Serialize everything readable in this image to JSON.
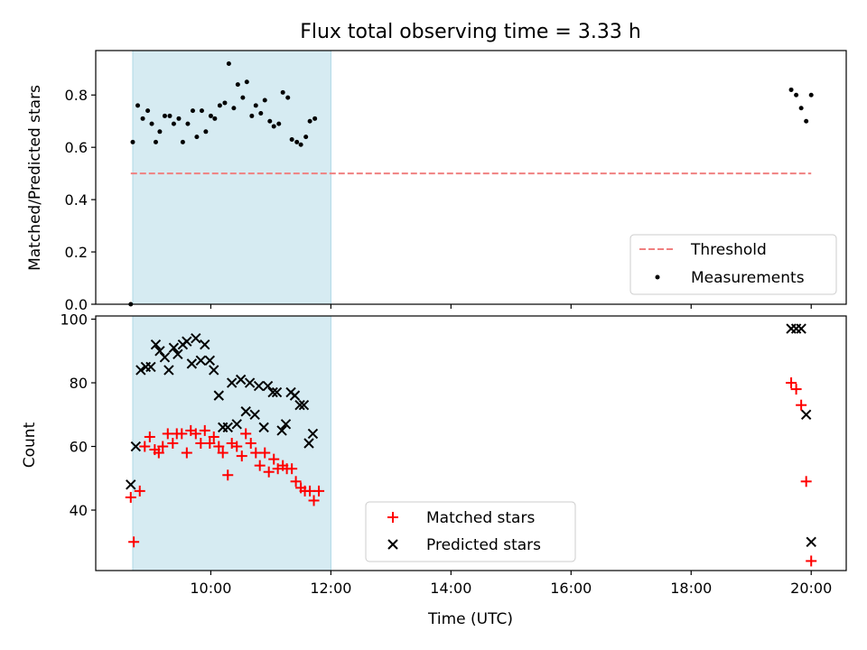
{
  "chart_data": [
    {
      "type": "scatter",
      "title": "Flux total observing time = 3.33 h",
      "xlabel": "",
      "ylabel": "Matched/Predicted stars",
      "xlim": [
        "08:05",
        "20:35"
      ],
      "ylim": [
        0,
        0.97
      ],
      "yticks": [
        "0.0",
        "0.2",
        "0.4",
        "0.6",
        "0.8"
      ],
      "shaded_span": [
        "08:42",
        "12:00"
      ],
      "legend": "lower-right",
      "threshold": {
        "name": "Threshold",
        "value": 0.5,
        "x_range": [
          "08:40",
          "20:00"
        ],
        "color": "#f08080"
      },
      "series": [
        {
          "name": "Measurements",
          "color": "#000000",
          "points": [
            [
              "08:40",
              0.0
            ],
            [
              "08:42",
              0.62
            ],
            [
              "08:47",
              0.76
            ],
            [
              "08:52",
              0.71
            ],
            [
              "08:57",
              0.74
            ],
            [
              "09:01",
              0.69
            ],
            [
              "09:05",
              0.62
            ],
            [
              "09:09",
              0.66
            ],
            [
              "09:14",
              0.72
            ],
            [
              "09:19",
              0.72
            ],
            [
              "09:23",
              0.69
            ],
            [
              "09:28",
              0.71
            ],
            [
              "09:32",
              0.62
            ],
            [
              "09:37",
              0.69
            ],
            [
              "09:42",
              0.74
            ],
            [
              "09:46",
              0.64
            ],
            [
              "09:51",
              0.74
            ],
            [
              "09:55",
              0.66
            ],
            [
              "10:00",
              0.72
            ],
            [
              "10:04",
              0.71
            ],
            [
              "10:09",
              0.76
            ],
            [
              "10:14",
              0.77
            ],
            [
              "10:18",
              0.92
            ],
            [
              "10:23",
              0.75
            ],
            [
              "10:27",
              0.84
            ],
            [
              "10:32",
              0.79
            ],
            [
              "10:36",
              0.85
            ],
            [
              "10:41",
              0.72
            ],
            [
              "10:45",
              0.76
            ],
            [
              "10:50",
              0.73
            ],
            [
              "10:54",
              0.78
            ],
            [
              "10:59",
              0.7
            ],
            [
              "11:03",
              0.68
            ],
            [
              "11:08",
              0.69
            ],
            [
              "11:12",
              0.81
            ],
            [
              "11:17",
              0.79
            ],
            [
              "11:21",
              0.63
            ],
            [
              "11:26",
              0.62
            ],
            [
              "11:30",
              0.61
            ],
            [
              "11:35",
              0.64
            ],
            [
              "11:39",
              0.7
            ],
            [
              "11:44",
              0.71
            ],
            [
              "19:40",
              0.82
            ],
            [
              "19:45",
              0.8
            ],
            [
              "19:50",
              0.75
            ],
            [
              "19:55",
              0.7
            ],
            [
              "20:00",
              0.8
            ]
          ]
        }
      ]
    },
    {
      "type": "scatter",
      "title": "",
      "xlabel": "Time (UTC)",
      "ylabel": "Count",
      "xlim": [
        "08:05",
        "20:35"
      ],
      "ylim": [
        21,
        101
      ],
      "yticks": [
        "40",
        "60",
        "80",
        "100"
      ],
      "xticks": [
        "10:00",
        "12:00",
        "14:00",
        "16:00",
        "18:00",
        "20:00"
      ],
      "shaded_span": [
        "08:42",
        "12:00"
      ],
      "legend": "lower-center",
      "series": [
        {
          "name": "Matched stars",
          "marker": "plus",
          "color": "#ff0000",
          "points": [
            [
              "08:40",
              44
            ],
            [
              "08:43",
              30
            ],
            [
              "08:49",
              46
            ],
            [
              "08:54",
              60
            ],
            [
              "08:59",
              63
            ],
            [
              "09:04",
              59
            ],
            [
              "09:08",
              58
            ],
            [
              "09:12",
              60
            ],
            [
              "09:17",
              64
            ],
            [
              "09:22",
              61
            ],
            [
              "09:26",
              64
            ],
            [
              "09:31",
              64
            ],
            [
              "09:36",
              58
            ],
            [
              "09:40",
              65
            ],
            [
              "09:45",
              64
            ],
            [
              "09:50",
              61
            ],
            [
              "09:54",
              65
            ],
            [
              "09:59",
              61
            ],
            [
              "10:03",
              63
            ],
            [
              "10:08",
              60
            ],
            [
              "10:12",
              58
            ],
            [
              "10:17",
              51
            ],
            [
              "10:21",
              61
            ],
            [
              "10:26",
              60
            ],
            [
              "10:31",
              57
            ],
            [
              "10:35",
              64
            ],
            [
              "10:40",
              61
            ],
            [
              "10:45",
              58
            ],
            [
              "10:49",
              54
            ],
            [
              "10:54",
              58
            ],
            [
              "10:58",
              52
            ],
            [
              "11:03",
              56
            ],
            [
              "11:07",
              53
            ],
            [
              "11:12",
              54
            ],
            [
              "11:16",
              53
            ],
            [
              "11:21",
              53
            ],
            [
              "11:25",
              49
            ],
            [
              "11:30",
              47
            ],
            [
              "11:34",
              46
            ],
            [
              "11:39",
              46
            ],
            [
              "11:43",
              43
            ],
            [
              "11:48",
              46
            ],
            [
              "19:40",
              80
            ],
            [
              "19:45",
              78
            ],
            [
              "19:50",
              73
            ],
            [
              "19:55",
              49
            ],
            [
              "20:00",
              24
            ]
          ]
        },
        {
          "name": "Predicted stars",
          "marker": "x",
          "color": "#000000",
          "points": [
            [
              "08:40",
              48
            ],
            [
              "08:45",
              60
            ],
            [
              "08:50",
              84
            ],
            [
              "08:55",
              85
            ],
            [
              "09:00",
              85
            ],
            [
              "09:05",
              92
            ],
            [
              "09:09",
              90
            ],
            [
              "09:14",
              88
            ],
            [
              "09:18",
              84
            ],
            [
              "09:23",
              91
            ],
            [
              "09:27",
              89
            ],
            [
              "09:32",
              92
            ],
            [
              "09:36",
              93
            ],
            [
              "09:41",
              86
            ],
            [
              "09:45",
              94
            ],
            [
              "09:50",
              87
            ],
            [
              "09:54",
              92
            ],
            [
              "09:59",
              87
            ],
            [
              "10:03",
              84
            ],
            [
              "10:08",
              76
            ],
            [
              "10:12",
              66
            ],
            [
              "10:17",
              66
            ],
            [
              "10:21",
              80
            ],
            [
              "10:26",
              67
            ],
            [
              "10:30",
              81
            ],
            [
              "10:35",
              71
            ],
            [
              "10:39",
              80
            ],
            [
              "10:44",
              70
            ],
            [
              "10:48",
              79
            ],
            [
              "10:53",
              66
            ],
            [
              "10:57",
              79
            ],
            [
              "11:02",
              77
            ],
            [
              "11:06",
              77
            ],
            [
              "11:11",
              65
            ],
            [
              "11:15",
              67
            ],
            [
              "11:20",
              77
            ],
            [
              "11:24",
              76
            ],
            [
              "11:29",
              73
            ],
            [
              "11:33",
              73
            ],
            [
              "11:38",
              61
            ],
            [
              "11:42",
              64
            ],
            [
              "19:40",
              97
            ],
            [
              "19:45",
              97
            ],
            [
              "19:50",
              97
            ],
            [
              "19:55",
              70
            ],
            [
              "20:00",
              30
            ]
          ]
        }
      ]
    }
  ]
}
